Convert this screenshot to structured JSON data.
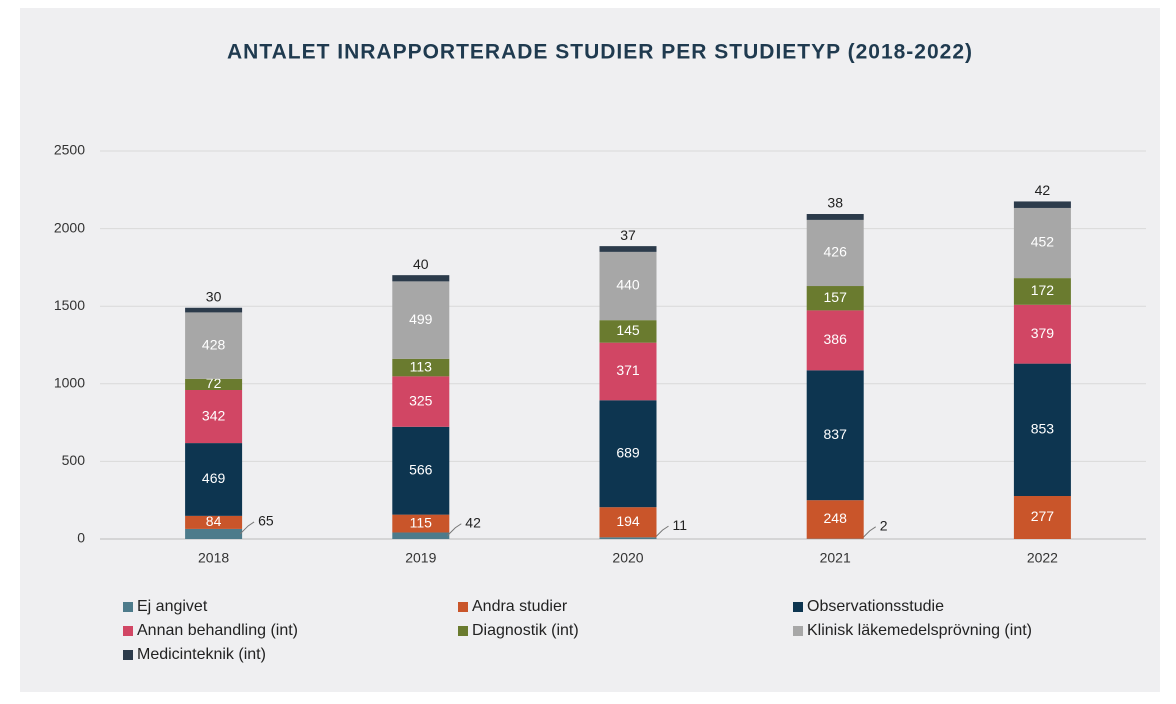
{
  "chart_data": {
    "type": "stacked_bar",
    "title": "ANTALET INRAPPORTERADE STUDIER PER STUDIETYP (2018-2022)",
    "categories": [
      "2018",
      "2019",
      "2020",
      "2021",
      "2022"
    ],
    "series": [
      {
        "name": "Ej angivet",
        "color": "#4d7b8b",
        "values": [
          65,
          42,
          11,
          2,
          null
        ]
      },
      {
        "name": "Andra studier",
        "color": "#c9552a",
        "values": [
          84,
          115,
          194,
          248,
          277
        ]
      },
      {
        "name": "Observationsstudie",
        "color": "#0d3550",
        "values": [
          469,
          566,
          689,
          837,
          853
        ]
      },
      {
        "name": "Annan behandling (int)",
        "color": "#d14664",
        "values": [
          342,
          325,
          371,
          386,
          379
        ]
      },
      {
        "name": "Diagnostik (int)",
        "color": "#6a7b2f",
        "values": [
          72,
          113,
          145,
          157,
          172
        ]
      },
      {
        "name": "Klinisk läkemedelsprövning (int)",
        "color": "#a7a7a7",
        "values": [
          428,
          499,
          440,
          426,
          452
        ]
      },
      {
        "name": "Medicinteknik (int)",
        "color": "#2c3b4b",
        "values": [
          30,
          40,
          37,
          38,
          42
        ]
      }
    ],
    "ylim": [
      0,
      2500
    ],
    "yticks": [
      0,
      500,
      1000,
      1500,
      2000,
      2500
    ],
    "grid": true
  }
}
